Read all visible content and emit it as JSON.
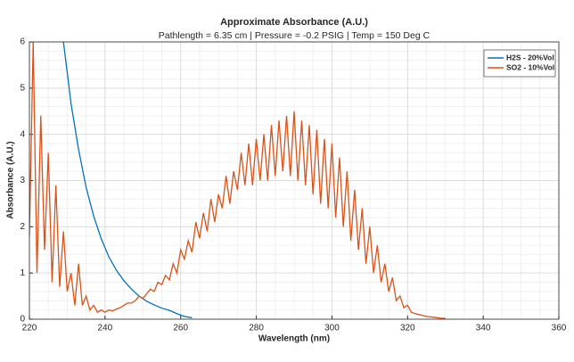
{
  "chart_data": {
    "type": "line",
    "title": "Approximate Absorbance (A.U.)",
    "subtitle": "Pathlength = 6.35 cm | Pressure = -0.2 PSIG | Temp = 150 Deg C",
    "x_label": "Wavelength (nm)",
    "y_label": "Absorbance (A.U.)",
    "xlim": [
      220,
      360
    ],
    "xticks": [
      220,
      240,
      260,
      280,
      300,
      320,
      340,
      360
    ],
    "ylim": [
      0,
      6
    ],
    "yticks": [
      0,
      1,
      2,
      3,
      4,
      5,
      6
    ],
    "grid": true,
    "legend_position": "top-right",
    "series": [
      {
        "name": "H2S - 20%Vol",
        "color": "#0072bd",
        "x": [
          229,
          231,
          233,
          235,
          237,
          239,
          241,
          243,
          245,
          247,
          249,
          251,
          253,
          255,
          257,
          259,
          261,
          263
        ],
        "values": [
          6.0,
          4.67,
          3.67,
          2.85,
          2.23,
          1.74,
          1.35,
          1.06,
          0.83,
          0.65,
          0.5,
          0.39,
          0.31,
          0.24,
          0.19,
          0.12,
          0.06,
          0.03
        ]
      },
      {
        "name": "SO2 - 10%Vol",
        "color": "#d95319",
        "x": [
          220,
          221,
          222,
          223,
          224,
          225,
          226,
          227,
          228,
          229,
          230,
          231,
          232,
          233,
          234,
          235,
          236,
          237,
          238,
          239,
          240,
          241,
          242,
          243,
          244,
          245,
          246,
          247,
          248,
          249,
          250,
          251,
          252,
          253,
          254,
          255,
          256,
          257,
          258,
          259,
          260,
          261,
          262,
          263,
          264,
          265,
          266,
          267,
          268,
          269,
          270,
          271,
          272,
          273,
          274,
          275,
          276,
          277,
          278,
          279,
          280,
          281,
          282,
          283,
          284,
          285,
          286,
          287,
          288,
          289,
          290,
          291,
          292,
          293,
          294,
          295,
          296,
          297,
          298,
          299,
          300,
          301,
          302,
          303,
          304,
          305,
          306,
          307,
          308,
          309,
          310,
          311,
          312,
          313,
          314,
          315,
          316,
          317,
          318,
          319,
          320,
          321,
          322,
          323,
          324,
          325,
          326,
          327,
          328,
          329,
          330
        ],
        "values": [
          1.8,
          6.0,
          1.0,
          4.4,
          1.5,
          3.6,
          0.8,
          2.9,
          0.7,
          1.9,
          0.6,
          1.0,
          0.3,
          1.2,
          0.3,
          0.5,
          0.2,
          0.3,
          0.15,
          0.2,
          0.15,
          0.2,
          0.18,
          0.22,
          0.25,
          0.3,
          0.35,
          0.35,
          0.4,
          0.5,
          0.45,
          0.55,
          0.65,
          0.6,
          0.8,
          0.75,
          0.95,
          0.85,
          1.2,
          1.0,
          1.5,
          1.3,
          1.7,
          1.45,
          2.1,
          1.75,
          2.3,
          1.9,
          2.6,
          2.1,
          2.7,
          2.4,
          3.1,
          2.5,
          3.2,
          2.8,
          3.6,
          2.9,
          3.8,
          2.9,
          3.9,
          3.0,
          4.0,
          3.0,
          4.2,
          3.1,
          4.3,
          3.2,
          4.4,
          3.1,
          4.5,
          3.0,
          4.3,
          2.9,
          4.2,
          2.7,
          4.1,
          2.5,
          3.9,
          2.4,
          3.8,
          2.2,
          3.5,
          2.0,
          3.2,
          1.7,
          2.8,
          1.5,
          2.4,
          1.2,
          2.0,
          1.0,
          1.6,
          0.8,
          1.2,
          0.6,
          0.9,
          0.4,
          0.5,
          0.25,
          0.3,
          0.15,
          0.12,
          0.1,
          0.08,
          0.06,
          0.05,
          0.04,
          0.03,
          0.02,
          0.02
        ]
      }
    ]
  }
}
